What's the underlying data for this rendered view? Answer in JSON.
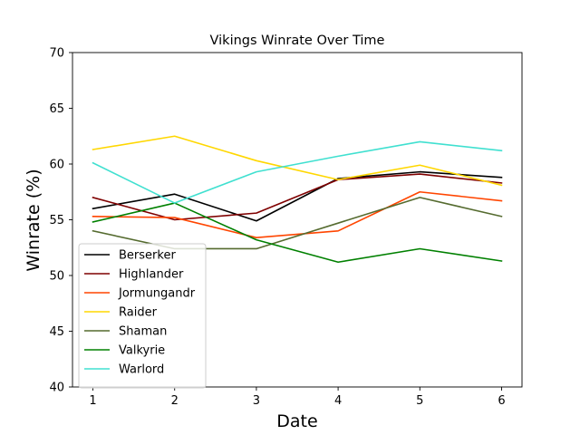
{
  "chart_data": {
    "type": "line",
    "title": "Vikings Winrate Over Time",
    "xlabel": "Date",
    "ylabel": "Winrate (%)",
    "x": [
      1,
      2,
      3,
      4,
      5,
      6
    ],
    "xlim": [
      0.75,
      6.25
    ],
    "ylim": [
      40,
      70
    ],
    "xticks": [
      1,
      2,
      3,
      4,
      5,
      6
    ],
    "yticks": [
      40,
      45,
      50,
      55,
      60,
      65,
      70
    ],
    "grid": false,
    "legend_position": "lower-left",
    "series": [
      {
        "name": "Berserker",
        "color": "#000000",
        "values": [
          56.0,
          57.3,
          54.9,
          58.7,
          59.3,
          58.8
        ]
      },
      {
        "name": "Highlander",
        "color": "#7f0000",
        "values": [
          57.0,
          55.0,
          55.6,
          58.6,
          59.1,
          58.3
        ]
      },
      {
        "name": "Jormungandr",
        "color": "#ff4500",
        "values": [
          55.3,
          55.2,
          53.4,
          54.0,
          57.5,
          56.7
        ]
      },
      {
        "name": "Raider",
        "color": "#ffd700",
        "values": [
          61.3,
          62.5,
          60.3,
          58.6,
          59.9,
          58.1
        ]
      },
      {
        "name": "Shaman",
        "color": "#556b2f",
        "values": [
          54.0,
          52.4,
          52.4,
          54.7,
          57.0,
          55.3
        ]
      },
      {
        "name": "Valkyrie",
        "color": "#008000",
        "values": [
          54.8,
          56.5,
          53.2,
          51.2,
          52.4,
          51.3
        ]
      },
      {
        "name": "Warlord",
        "color": "#40e0d0",
        "values": [
          60.1,
          56.5,
          59.3,
          60.7,
          62.0,
          61.2
        ]
      }
    ]
  }
}
